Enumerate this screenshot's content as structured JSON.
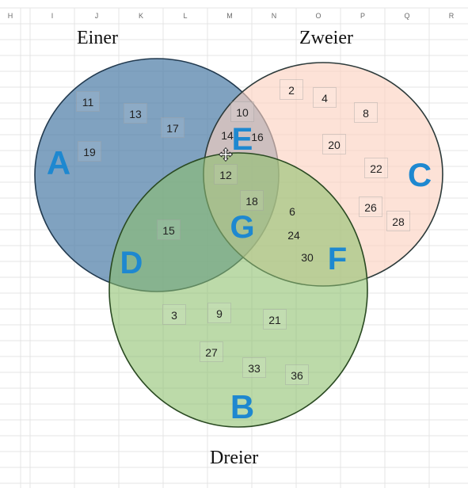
{
  "columns": [
    "H",
    "I",
    "J",
    "K",
    "L",
    "M",
    "N",
    "O",
    "P",
    "Q",
    "R"
  ],
  "sets": {
    "einer": {
      "title": "Einer",
      "fill": "#4f7ea8",
      "stroke": "#223a4f"
    },
    "zweier": {
      "title": "Zweier",
      "fill": "#fbd0bf",
      "stroke": "#2c3a3a"
    },
    "dreier": {
      "title": "Dreier",
      "fill": "#8cc06b",
      "stroke": "#2a4a22"
    }
  },
  "region_letters": {
    "A": "A",
    "B": "B",
    "C": "C",
    "D": "D",
    "E": "E",
    "F": "F",
    "G": "G"
  },
  "numbers": {
    "n11": "11",
    "n13": "13",
    "n17": "17",
    "n19": "19",
    "n10": "10",
    "n14": "14",
    "n16": "16",
    "n2": "2",
    "n4": "4",
    "n8": "8",
    "n20": "20",
    "n22": "22",
    "n26": "26",
    "n28": "28",
    "n12": "12",
    "n18": "18",
    "n6": "6",
    "n24": "24",
    "n30": "30",
    "n15": "15",
    "n3": "3",
    "n9": "9",
    "n21": "21",
    "n27": "27",
    "n33": "33",
    "n36": "36"
  },
  "letter_color": "#1e88d0",
  "gridline_color": "#e4e4e4",
  "icons": {
    "cursor": "move-cursor-icon"
  }
}
